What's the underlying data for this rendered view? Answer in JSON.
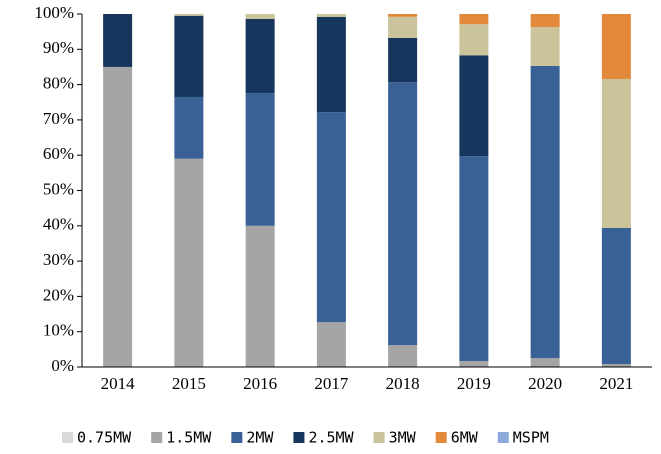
{
  "chart_data": {
    "type": "stacked_bar_percent",
    "categories": [
      "2014",
      "2015",
      "2016",
      "2017",
      "2018",
      "2019",
      "2020",
      "2021"
    ],
    "series": [
      {
        "name": "0.75MW",
        "color": "#d9d9d9",
        "values": [
          0,
          0,
          0,
          0,
          0,
          0,
          0,
          0
        ]
      },
      {
        "name": "1.5MW",
        "color": "#a5a5a5",
        "values": [
          85,
          59,
          40,
          12.7,
          6.2,
          1.7,
          2.5,
          0.8
        ]
      },
      {
        "name": "2MW",
        "color": "#3a6196",
        "values": [
          0,
          17.5,
          37.6,
          59.5,
          74.5,
          58,
          82.8,
          38.6
        ]
      },
      {
        "name": "2.5MW",
        "color": "#17365d",
        "values": [
          15,
          23,
          21,
          27,
          12.5,
          28.6,
          0,
          0
        ]
      },
      {
        "name": "3MW",
        "color": "#cbc39a",
        "values": [
          0,
          0.5,
          1.4,
          0.8,
          6,
          8.8,
          11,
          42.2
        ]
      },
      {
        "name": "6MW",
        "color": "#e2893c",
        "values": [
          0,
          0,
          0,
          0,
          0.8,
          2.9,
          3.7,
          18.4
        ]
      },
      {
        "name": "MSPM",
        "color": "#8eaadb",
        "values": [
          0,
          0,
          0,
          0,
          0,
          0,
          0,
          0
        ]
      }
    ],
    "ylim": [
      0,
      100
    ],
    "yticks": [
      {
        "value": 0,
        "label": "0%"
      },
      {
        "value": 10,
        "label": "10%"
      },
      {
        "value": 20,
        "label": "20%"
      },
      {
        "value": 30,
        "label": "30%"
      },
      {
        "value": 40,
        "label": "40%"
      },
      {
        "value": 50,
        "label": "50%"
      },
      {
        "value": 60,
        "label": "60%"
      },
      {
        "value": 70,
        "label": "70%"
      },
      {
        "value": 80,
        "label": "80%"
      },
      {
        "value": 90,
        "label": "90%"
      },
      {
        "value": 100,
        "label": "100%"
      }
    ],
    "legend": "bottom"
  }
}
